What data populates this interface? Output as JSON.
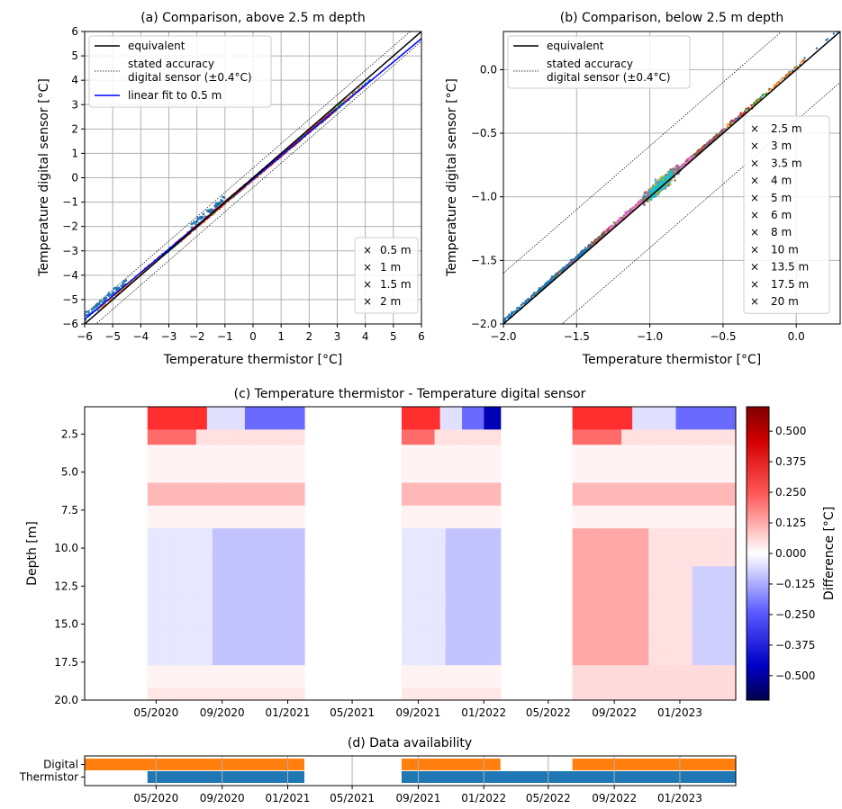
{
  "chart_data": [
    {
      "id": "a",
      "type": "scatter",
      "title": "(a) Comparison, above 2.5 m depth",
      "xlabel": "Temperature thermistor [°C]",
      "ylabel": "Temperature digital sensor [°C]",
      "xlim": [
        -6,
        6
      ],
      "ylim": [
        -6,
        6
      ],
      "xticks": [
        "−6",
        "−5",
        "−4",
        "−3",
        "−2",
        "−1",
        "0",
        "1",
        "2",
        "3",
        "4",
        "5",
        "6"
      ],
      "yticks": [
        "−6",
        "−5",
        "−4",
        "−3",
        "−2",
        "−1",
        "0",
        "1",
        "2",
        "3",
        "4",
        "5",
        "6"
      ],
      "grid": true,
      "lines": [
        {
          "name": "equivalent",
          "color": "#000000",
          "style": "solid"
        },
        {
          "name": "stated accuracy\ndigital sensor (±0.4°C)",
          "color": "#000000",
          "style": "dotted",
          "offset": 0.4
        },
        {
          "name": "linear fit to 0.5 m",
          "color": "#0000ff",
          "style": "solid",
          "slope": 0.96,
          "intercept": -0.05
        }
      ],
      "series": [
        {
          "name": "0.5 m",
          "color": "#1f77b4",
          "x_range": [
            -6,
            4.2
          ]
        },
        {
          "name": "1 m",
          "color": "#ff7f0e",
          "x_range": [
            -5.5,
            4.0
          ]
        },
        {
          "name": "1.5 m",
          "color": "#2ca02c",
          "x_range": [
            -3.0,
            3.2
          ]
        },
        {
          "name": "2 m",
          "color": "#d62728",
          "x_range": [
            -2.8,
            2.9
          ]
        }
      ],
      "legend_upper": "top-left",
      "legend_lower": "bottom-right"
    },
    {
      "id": "b",
      "type": "scatter",
      "title": "(b) Comparison, below 2.5 m depth",
      "xlabel": "Temperature thermistor [°C]",
      "ylabel": "Temperature digital sensor [°C]",
      "xlim": [
        -2.0,
        0.3
      ],
      "ylim": [
        -2.0,
        0.3
      ],
      "xticks": [
        "−2.0",
        "−1.5",
        "−1.0",
        "−0.5",
        "0.0"
      ],
      "yticks": [
        "−2.0",
        "−1.5",
        "−1.0",
        "−0.5",
        "0.0"
      ],
      "grid": true,
      "lines": [
        {
          "name": "equivalent",
          "color": "#000000",
          "style": "solid"
        },
        {
          "name": "stated accuracy\ndigital sensor (±0.4°C)",
          "color": "#000000",
          "style": "dotted",
          "offset": 0.4
        }
      ],
      "series": [
        {
          "name": "2.5 m",
          "color": "#1f77b4"
        },
        {
          "name": "3 m",
          "color": "#ff7f0e"
        },
        {
          "name": "3.5 m",
          "color": "#2ca02c"
        },
        {
          "name": "4 m",
          "color": "#d62728"
        },
        {
          "name": "5 m",
          "color": "#9467bd"
        },
        {
          "name": "6 m",
          "color": "#8c564b"
        },
        {
          "name": "8 m",
          "color": "#e377c2"
        },
        {
          "name": "10 m",
          "color": "#7f7f7f"
        },
        {
          "name": "13.5 m",
          "color": "#bcbd22"
        },
        {
          "name": "17.5 m",
          "color": "#17becf"
        },
        {
          "name": "20 m",
          "color": "#1f77b4"
        }
      ],
      "legend_upper": "top-left",
      "legend_lower": "right"
    },
    {
      "id": "c",
      "type": "heatmap",
      "title": "(c) Temperature thermistor - Temperature digital sensor",
      "ylabel": "Depth [m]",
      "xticks": [
        "05/2020",
        "09/2020",
        "01/2021",
        "05/2021",
        "09/2021",
        "01/2022",
        "05/2022",
        "09/2022",
        "01/2023"
      ],
      "yticks": [
        "2.5",
        "5.0",
        "7.5",
        "10.0",
        "12.5",
        "15.0",
        "17.5",
        "20.0"
      ],
      "ylim": [
        0.7,
        20.0
      ],
      "colorbar_label": "Difference [°C]",
      "colorbar_ticks": [
        "0.500",
        "0.375",
        "0.250",
        "0.125",
        "0.000",
        "−0.125",
        "−0.250",
        "−0.375",
        "−0.500"
      ],
      "colorbar_range": [
        -0.6,
        0.6
      ],
      "colormap": "seismic",
      "segments": [
        {
          "start": "2020-04-15",
          "end": "2021-02-01"
        },
        {
          "start": "2021-08-01",
          "end": "2022-02-01"
        },
        {
          "start": "2022-06-15",
          "end": "2023-04-15"
        }
      ]
    },
    {
      "id": "d",
      "type": "bar",
      "title": "(d) Data availability",
      "categories": [
        "Digital",
        "Thermistor"
      ],
      "xticks": [
        "05/2020",
        "09/2020",
        "01/2021",
        "05/2021",
        "09/2021",
        "01/2022",
        "05/2022",
        "09/2022",
        "01/2023"
      ],
      "series": [
        {
          "name": "Digital",
          "color": "#ff7f0e",
          "periods": [
            [
              "2019-12-20",
              "2021-02-01"
            ],
            [
              "2021-08-01",
              "2022-02-01"
            ],
            [
              "2022-06-15",
              "2023-04-15"
            ]
          ]
        },
        {
          "name": "Thermistor",
          "color": "#1f77b4",
          "periods": [
            [
              "2020-04-15",
              "2021-02-01"
            ],
            [
              "2021-08-01",
              "2023-04-15"
            ]
          ]
        }
      ]
    }
  ]
}
